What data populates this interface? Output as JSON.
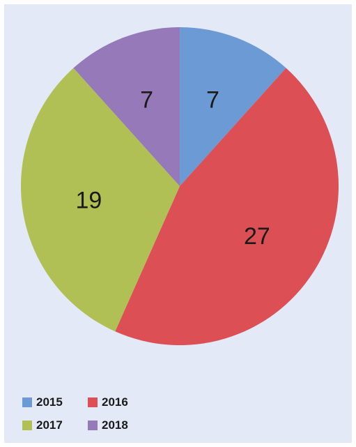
{
  "chart_data": {
    "type": "pie",
    "title": "",
    "categories": [
      "2015",
      "2016",
      "2017",
      "2018"
    ],
    "values": [
      7,
      27,
      19,
      7
    ],
    "value_labels": [
      "7",
      "27",
      "19",
      "7"
    ],
    "colors": [
      "#6c9ad4",
      "#dc5055",
      "#b0c055",
      "#9679b8"
    ],
    "legend": {
      "placement": "bottom-left",
      "entries": [
        "2015",
        "2016",
        "2017",
        "2018"
      ]
    }
  },
  "colors": {
    "background": "#e3e9f6"
  }
}
